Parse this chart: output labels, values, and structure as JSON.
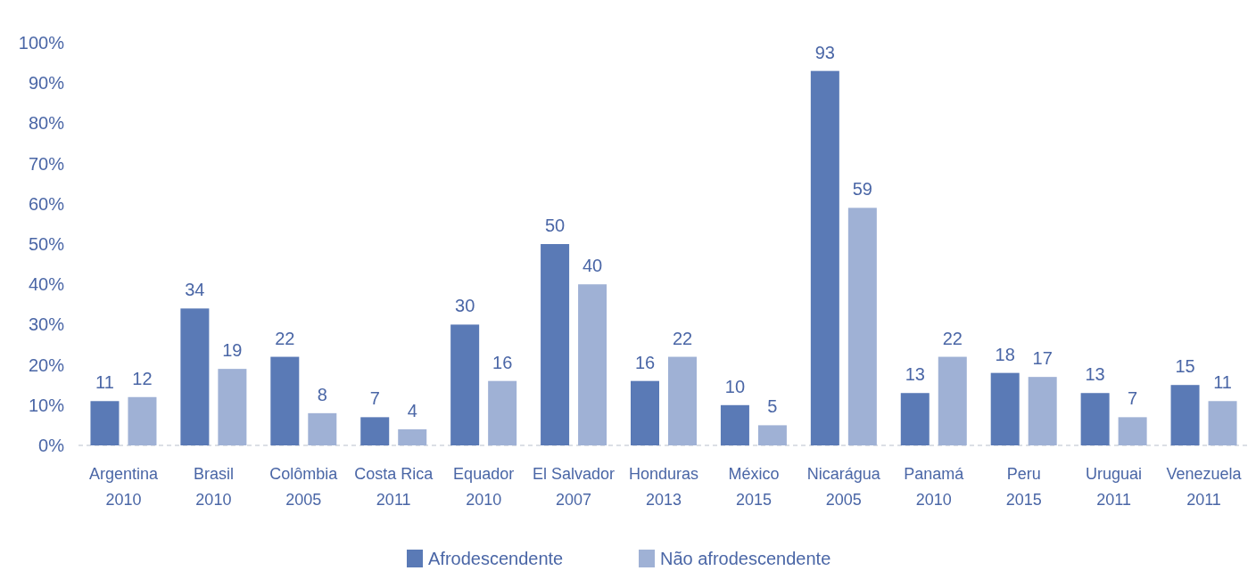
{
  "chart_data": {
    "type": "bar",
    "categories": [
      "Argentina\n2010",
      "Brasil\n2010",
      "Colômbia\n2005",
      "Costa Rica\n2011",
      "Equador\n2010",
      "El Salvador\n2007",
      "Honduras\n2013",
      "México\n2015",
      "Nicarágua\n2005",
      "Panamá\n2010",
      "Peru\n2015",
      "Uruguai\n2011",
      "Venezuela\n2011"
    ],
    "series": [
      {
        "name": "Afrodescendente",
        "color": "#5a7ab6",
        "values": [
          11,
          34,
          22,
          7,
          30,
          50,
          16,
          10,
          93,
          13,
          18,
          13,
          15
        ]
      },
      {
        "name": "Não afrodescendente",
        "color": "#9fb1d5",
        "values": [
          12,
          19,
          8,
          4,
          16,
          40,
          22,
          5,
          59,
          22,
          17,
          7,
          11
        ]
      }
    ],
    "ylim": [
      0,
      100
    ],
    "yticks": [
      {
        "value": 0,
        "label": "0%"
      },
      {
        "value": 10,
        "label": "10%"
      },
      {
        "value": 20,
        "label": "20%"
      },
      {
        "value": 30,
        "label": "30%"
      },
      {
        "value": 40,
        "label": "40%"
      },
      {
        "value": 50,
        "label": "50%"
      },
      {
        "value": 60,
        "label": "60%"
      },
      {
        "value": 70,
        "label": "70%"
      },
      {
        "value": 80,
        "label": "80%"
      },
      {
        "value": 90,
        "label": "90%"
      },
      {
        "value": 100,
        "label": "100%"
      }
    ],
    "data_labels": true,
    "legend": "bottom",
    "grid": false
  }
}
